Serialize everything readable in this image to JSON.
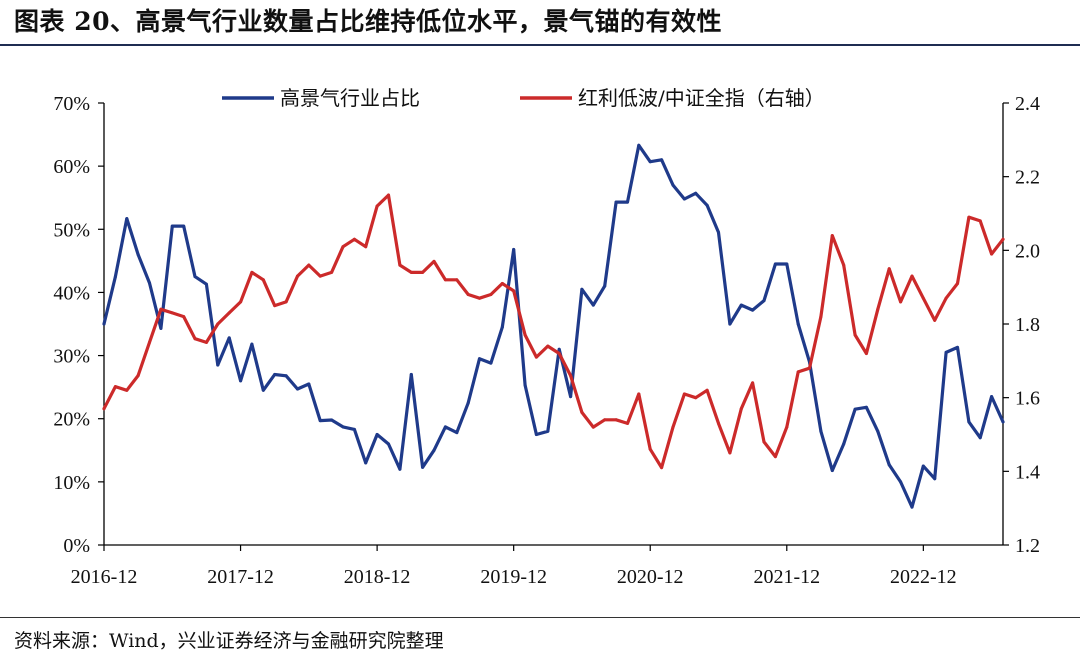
{
  "title": "图表 20、高景气行业数量占比维持低位水平，景气锚的有效性",
  "source": "资料来源：Wind，兴业证券经济与金融研究院整理",
  "colors": {
    "series1": "#1f3a8a",
    "series2": "#cc2a2a",
    "axis": "#000000"
  },
  "chart_data": {
    "type": "line",
    "x_tick_labels": [
      "2016-12",
      "2017-12",
      "2018-12",
      "2019-12",
      "2020-12",
      "2021-12",
      "2022-12"
    ],
    "x_tick_index": [
      0,
      12,
      24,
      36,
      48,
      60,
      72
    ],
    "left_axis": {
      "ylim": [
        0,
        70
      ],
      "ticks": [
        0,
        10,
        20,
        30,
        40,
        50,
        60,
        70
      ],
      "labels": [
        "0%",
        "10%",
        "20%",
        "30%",
        "40%",
        "50%",
        "60%",
        "70%"
      ]
    },
    "right_axis": {
      "ylim": [
        1.2,
        2.4
      ],
      "ticks": [
        1.2,
        1.4,
        1.6,
        1.8,
        2.0,
        2.2,
        2.4
      ],
      "labels": [
        "1.2",
        "1.4",
        "1.6",
        "1.8",
        "2.0",
        "2.2",
        "2.4"
      ]
    },
    "series": [
      {
        "name": "高景气行业占比",
        "axis": "left",
        "values": [
          35.0,
          42.5,
          51.7,
          46.0,
          41.5,
          34.3,
          50.5,
          50.5,
          42.5,
          41.3,
          28.5,
          32.8,
          26.0,
          31.8,
          24.5,
          27.0,
          26.8,
          24.7,
          25.5,
          19.7,
          19.8,
          18.7,
          18.3,
          13.0,
          17.5,
          16.0,
          12.0,
          27.0,
          12.3,
          15.0,
          18.7,
          17.8,
          22.5,
          29.5,
          28.8,
          34.5,
          46.8,
          25.3,
          17.5,
          18.0,
          31.0,
          23.5,
          40.5,
          38.0,
          41.0,
          54.3,
          54.3,
          63.3,
          60.7,
          61.0,
          57.0,
          54.8,
          55.7,
          53.8,
          49.5,
          35.0,
          38.0,
          37.2,
          38.7,
          44.5,
          44.5,
          35.0,
          29.0,
          18.0,
          11.8,
          16.0,
          21.5,
          21.8,
          18.0,
          12.7,
          10.0,
          6.0,
          12.5,
          10.5,
          30.5,
          31.3,
          19.5,
          17.0,
          23.5,
          19.5
        ]
      },
      {
        "name": "红利低波/中证全指（右轴）",
        "axis": "right",
        "values": [
          1.57,
          1.63,
          1.62,
          1.66,
          1.75,
          1.84,
          1.83,
          1.82,
          1.76,
          1.75,
          1.8,
          1.83,
          1.86,
          1.94,
          1.92,
          1.85,
          1.86,
          1.93,
          1.96,
          1.93,
          1.94,
          2.01,
          2.03,
          2.01,
          2.12,
          2.15,
          1.96,
          1.94,
          1.94,
          1.97,
          1.92,
          1.92,
          1.88,
          1.87,
          1.88,
          1.91,
          1.89,
          1.77,
          1.71,
          1.74,
          1.72,
          1.66,
          1.56,
          1.52,
          1.54,
          1.54,
          1.53,
          1.61,
          1.46,
          1.41,
          1.52,
          1.61,
          1.6,
          1.62,
          1.53,
          1.45,
          1.57,
          1.64,
          1.48,
          1.44,
          1.52,
          1.67,
          1.68,
          1.82,
          2.04,
          1.96,
          1.77,
          1.72,
          1.84,
          1.95,
          1.86,
          1.93,
          1.87,
          1.81,
          1.87,
          1.91,
          2.09,
          2.08,
          1.99,
          2.03
        ]
      }
    ],
    "legend": [
      "高景气行业占比",
      "红利低波/中证全指（右轴）"
    ],
    "legend_position": "top-center"
  }
}
